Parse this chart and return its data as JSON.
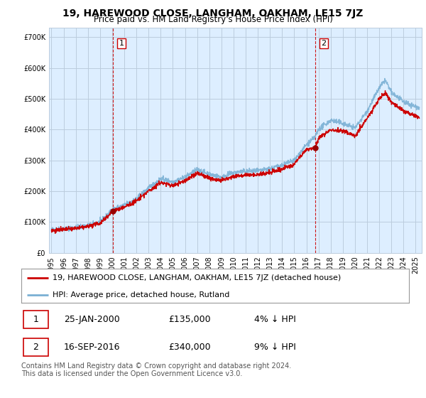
{
  "title": "19, HAREWOOD CLOSE, LANGHAM, OAKHAM, LE15 7JZ",
  "subtitle": "Price paid vs. HM Land Registry's House Price Index (HPI)",
  "ylabel_ticks": [
    "£0",
    "£100K",
    "£200K",
    "£300K",
    "£400K",
    "£500K",
    "£600K",
    "£700K"
  ],
  "ytick_values": [
    0,
    100000,
    200000,
    300000,
    400000,
    500000,
    600000,
    700000
  ],
  "ylim": [
    0,
    730000
  ],
  "xlim_start": 1994.8,
  "xlim_end": 2025.5,
  "legend_entry1": "19, HAREWOOD CLOSE, LANGHAM, OAKHAM, LE15 7JZ (detached house)",
  "legend_entry2": "HPI: Average price, detached house, Rutland",
  "sale1_date": "25-JAN-2000",
  "sale1_price": "£135,000",
  "sale1_pct": "4% ↓ HPI",
  "sale2_date": "16-SEP-2016",
  "sale2_price": "£340,000",
  "sale2_pct": "9% ↓ HPI",
  "footnote": "Contains HM Land Registry data © Crown copyright and database right 2024.\nThis data is licensed under the Open Government Licence v3.0.",
  "sale1_x": 2000.07,
  "sale1_y": 135000,
  "sale2_x": 2016.71,
  "sale2_y": 340000,
  "line_color_red": "#cc0000",
  "line_color_blue": "#7ab0d4",
  "dot_color_red": "#990000",
  "vline_color": "#cc0000",
  "plot_bg_color": "#ddeeff",
  "background_color": "#ffffff",
  "grid_color": "#bbccdd",
  "title_fontsize": 10,
  "subtitle_fontsize": 8.5,
  "tick_fontsize": 7,
  "legend_fontsize": 8,
  "footnote_fontsize": 7,
  "hpi_anchors_x": [
    1995.0,
    1996.0,
    1997.0,
    1998.0,
    1999.0,
    2000.07,
    2001.0,
    2002.0,
    2003.0,
    2004.0,
    2005.0,
    2006.0,
    2007.0,
    2008.0,
    2009.0,
    2010.0,
    2011.0,
    2012.0,
    2013.0,
    2014.0,
    2015.0,
    2016.0,
    2016.71,
    2017.0,
    2018.0,
    2019.0,
    2020.0,
    2021.0,
    2022.0,
    2022.5,
    2023.0,
    2024.0,
    2025.3
  ],
  "hpi_anchors_y": [
    75000,
    78000,
    82000,
    88000,
    100000,
    140000,
    155000,
    175000,
    210000,
    240000,
    230000,
    245000,
    270000,
    255000,
    245000,
    260000,
    265000,
    265000,
    272000,
    285000,
    300000,
    350000,
    375000,
    400000,
    430000,
    420000,
    405000,
    460000,
    535000,
    560000,
    520000,
    490000,
    470000
  ],
  "prop_anchors_x": [
    1995.0,
    1996.0,
    1997.0,
    1998.0,
    1999.0,
    2000.07,
    2001.0,
    2002.0,
    2003.0,
    2004.0,
    2005.0,
    2006.0,
    2007.0,
    2008.0,
    2009.0,
    2010.0,
    2011.0,
    2012.0,
    2013.0,
    2014.0,
    2015.0,
    2016.0,
    2016.71,
    2017.0,
    2018.0,
    2019.0,
    2020.0,
    2021.0,
    2022.0,
    2022.5,
    2023.0,
    2024.0,
    2025.3
  ],
  "prop_anchors_y": [
    72000,
    75000,
    79000,
    85000,
    96000,
    135000,
    148000,
    168000,
    200000,
    228000,
    218000,
    233000,
    258000,
    243000,
    233000,
    248000,
    253000,
    253000,
    260000,
    272000,
    287000,
    336000,
    340000,
    370000,
    400000,
    395000,
    380000,
    435000,
    500000,
    520000,
    490000,
    460000,
    440000
  ]
}
